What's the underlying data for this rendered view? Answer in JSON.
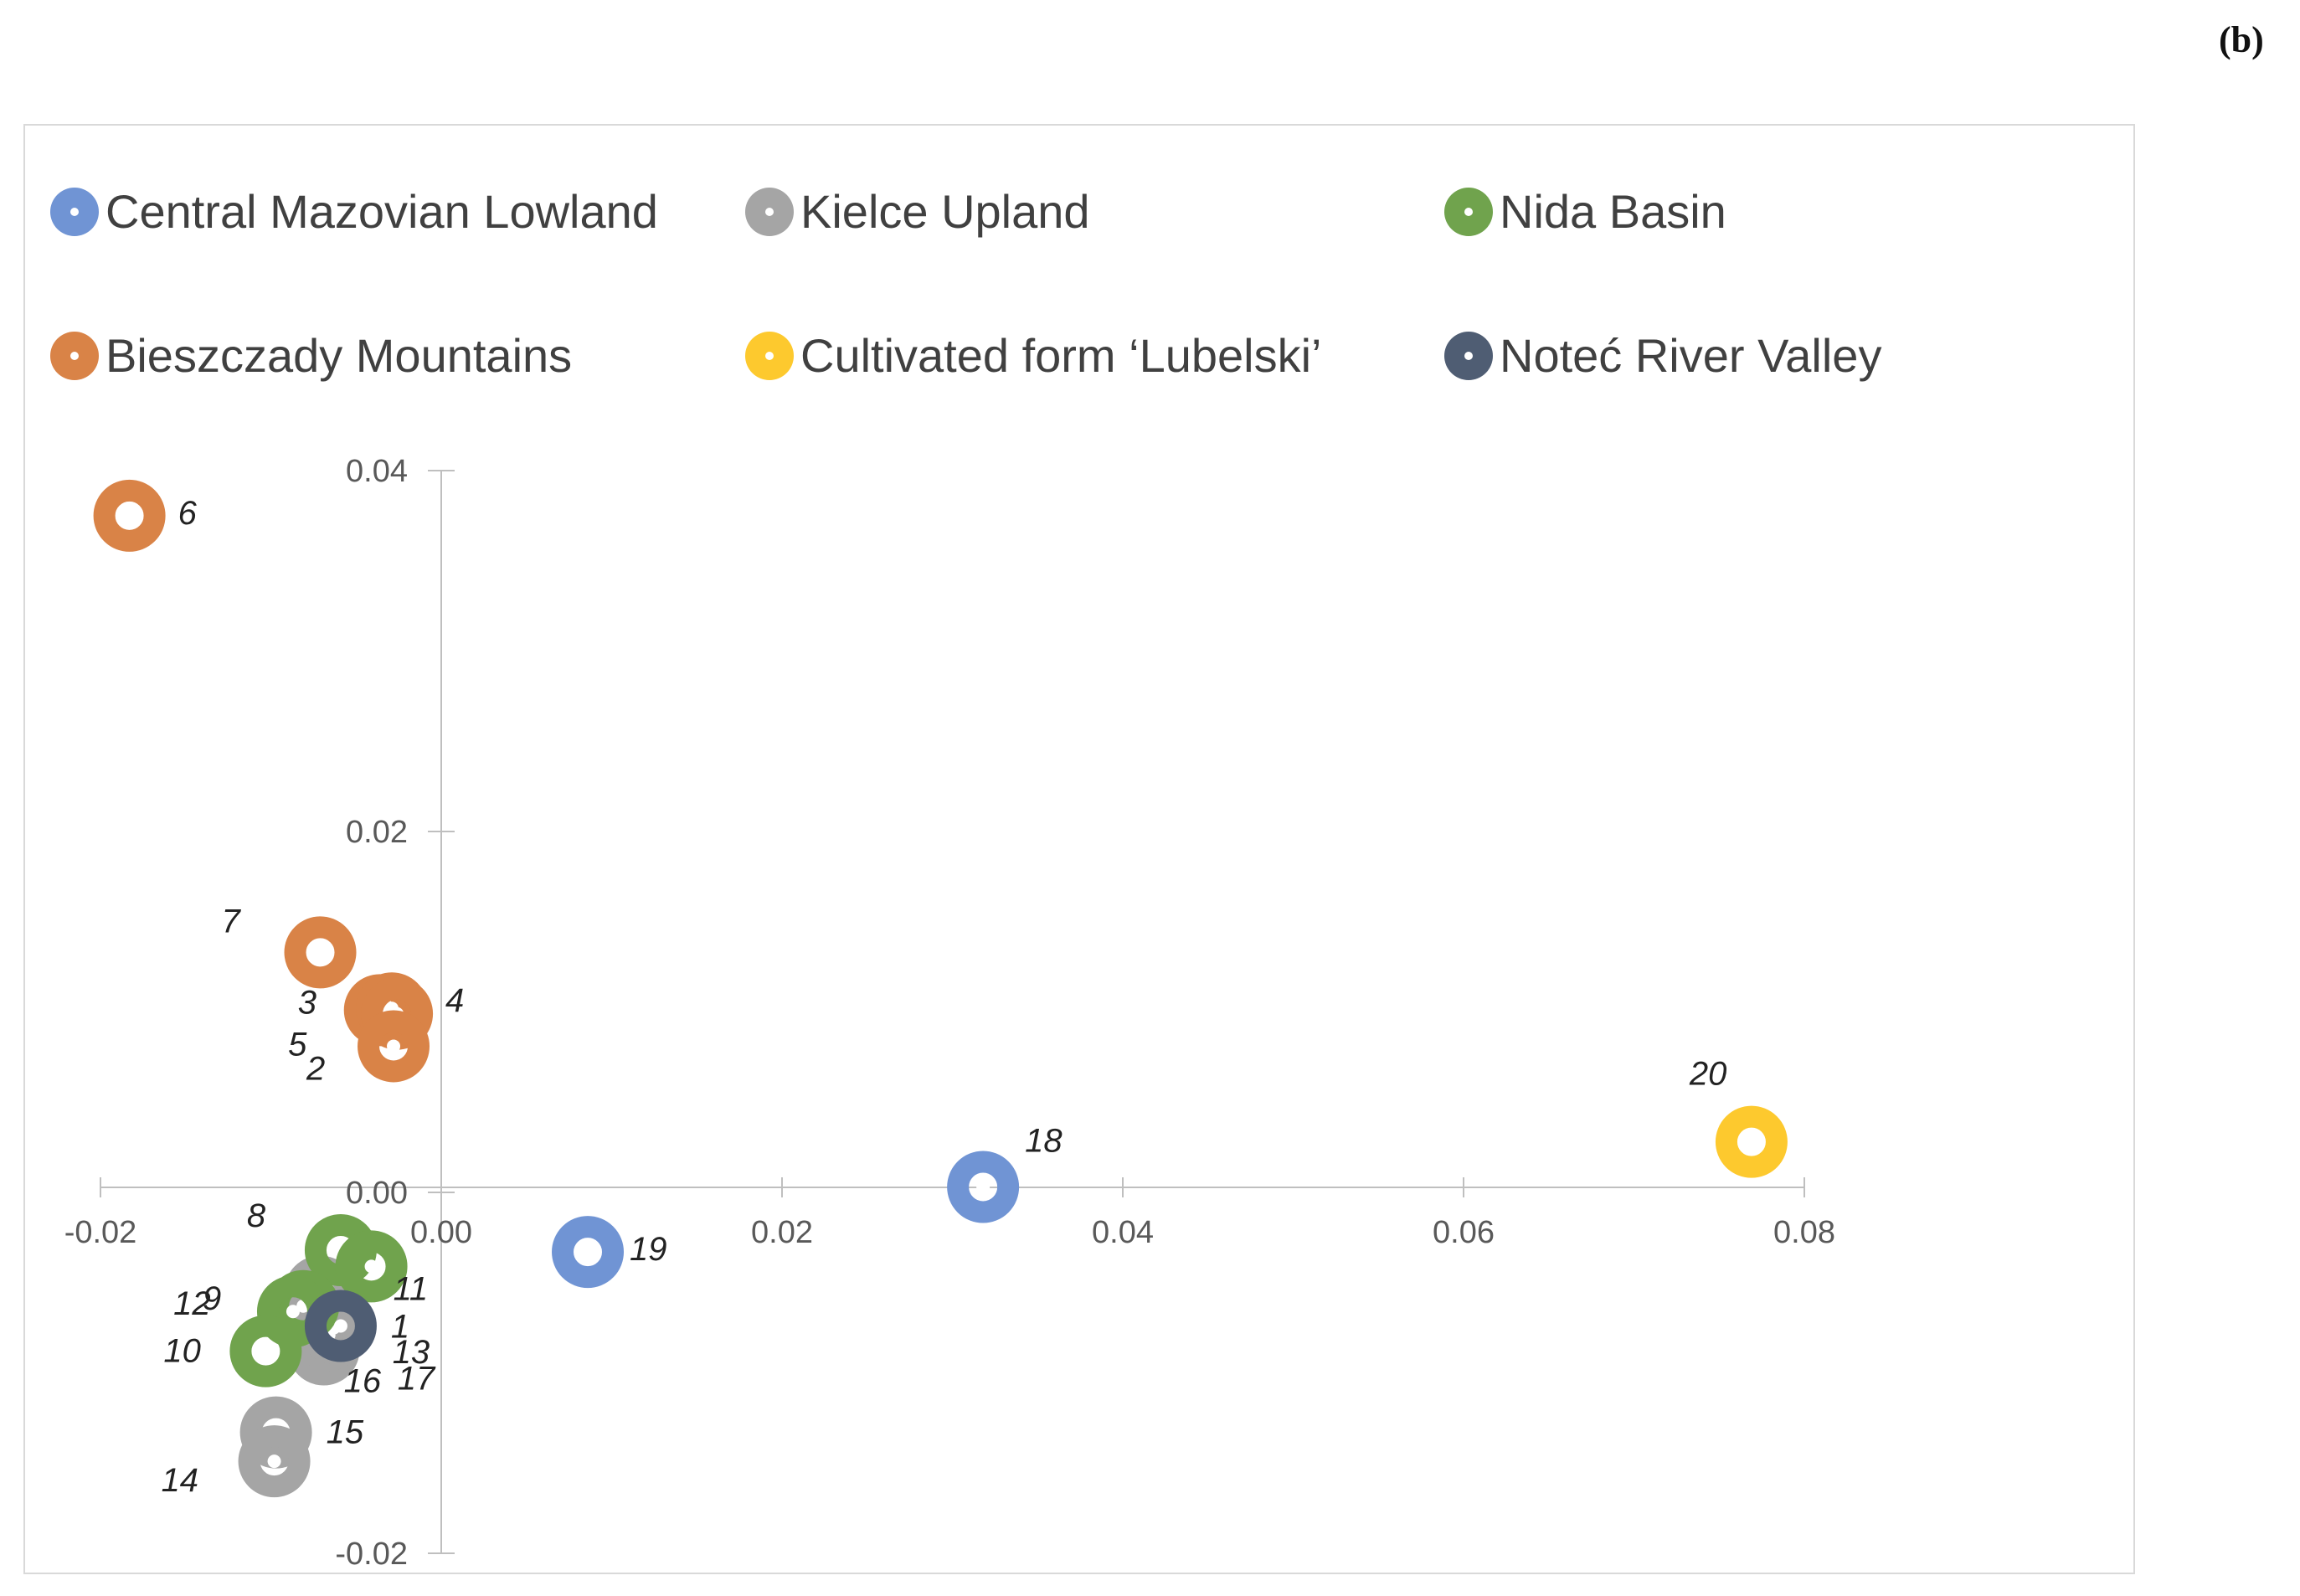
{
  "panel_label": "(b)",
  "chart_data": {
    "type": "scatter",
    "title": "",
    "xlabel": "",
    "ylabel": "",
    "xlim": [
      -0.02,
      0.08
    ],
    "ylim": [
      -0.02,
      0.04
    ],
    "x_ticks": [
      "-0.02",
      "0.00",
      "0.02",
      "0.04",
      "0.06",
      "0.08"
    ],
    "y_ticks": [
      "-0.02",
      "0.00",
      "0.02",
      "0.04"
    ],
    "grid": false,
    "legend_position": "top",
    "series": [
      {
        "name": "Central Mazovian Lowland",
        "color": "#7094d4",
        "points": [
          {
            "label": "18",
            "x": 0.0318,
            "y": 0.0003
          },
          {
            "label": "19",
            "x": 0.0086,
            "y": -0.0033
          }
        ]
      },
      {
        "name": "Kielce Upland",
        "color": "#a5a5a5",
        "points": [
          {
            "label": "16",
            "x": -0.0069,
            "y": -0.0087
          },
          {
            "label": "13",
            "x": -0.0066,
            "y": -0.0079
          },
          {
            "label": "17",
            "x": -0.0063,
            "y": -0.0075
          },
          {
            "label": "15",
            "x": -0.0097,
            "y": -0.0133
          },
          {
            "label": "14",
            "x": -0.0098,
            "y": -0.0149
          },
          {
            "label": "",
            "x": -0.0071,
            "y": -0.0055
          }
        ]
      },
      {
        "name": "Nida Basin",
        "color": "#70a34d",
        "points": [
          {
            "label": "8",
            "x": -0.0059,
            "y": -0.0032
          },
          {
            "label": "11",
            "x": -0.0041,
            "y": -0.0041
          },
          {
            "label": "12",
            "x": -0.0081,
            "y": -0.0063
          },
          {
            "label": "9",
            "x": -0.0087,
            "y": -0.0066
          },
          {
            "label": "10",
            "x": -0.0103,
            "y": -0.0088
          }
        ]
      },
      {
        "name": "Bieszczady Mountains",
        "color": "#d98347",
        "points": [
          {
            "label": "6",
            "x": -0.0183,
            "y": 0.0375
          },
          {
            "label": "7",
            "x": -0.0071,
            "y": 0.0133
          },
          {
            "label": "3",
            "x": -0.0036,
            "y": 0.0101
          },
          {
            "label": "4",
            "x": -0.0029,
            "y": 0.0102
          },
          {
            "label": "5",
            "x": -0.0026,
            "y": 0.0099
          },
          {
            "label": "2",
            "x": -0.0028,
            "y": 0.0081
          }
        ]
      },
      {
        "name": "Cultivated form ‘Lubelski’",
        "color": "#fdc92e",
        "points": [
          {
            "label": "20",
            "x": 0.0769,
            "y": 0.0028
          }
        ]
      },
      {
        "name": "Noteć River Valley",
        "color": "#4f5d73",
        "points": [
          {
            "label": "1",
            "x": -0.0059,
            "y": -0.0074
          }
        ]
      }
    ]
  }
}
